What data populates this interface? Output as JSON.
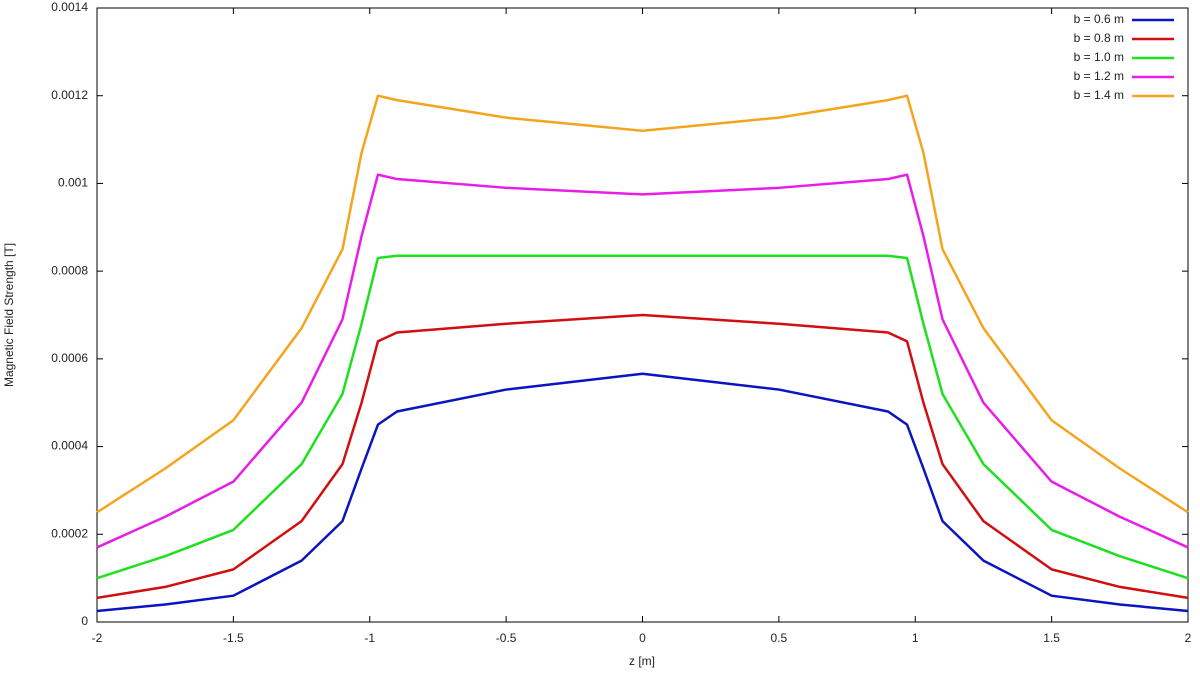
{
  "chart_data": {
    "type": "line",
    "xlabel": "z [m]",
    "ylabel": "Magnetic Field Strength [T]",
    "x": [
      -2,
      -1.75,
      -1.5,
      -1.25,
      -1.1,
      -1.03,
      -0.97,
      -0.9,
      -0.5,
      0,
      0.5,
      0.9,
      0.97,
      1.03,
      1.1,
      1.25,
      1.5,
      1.75,
      2
    ],
    "series": [
      {
        "name": "b = 0.6 m",
        "color": "#0a14c0",
        "values": [
          2.5e-05,
          4e-05,
          6e-05,
          0.00014,
          0.00023,
          0.00035,
          0.00045,
          0.00048,
          0.00053,
          0.000566,
          0.00053,
          0.00048,
          0.00045,
          0.00035,
          0.00023,
          0.00014,
          6e-05,
          4e-05,
          2.5e-05
        ]
      },
      {
        "name": "b = 0.8 m",
        "color": "#d01010",
        "values": [
          5.5e-05,
          8e-05,
          0.00012,
          0.00023,
          0.00036,
          0.0005,
          0.00064,
          0.00066,
          0.00068,
          0.0007,
          0.00068,
          0.00066,
          0.00064,
          0.0005,
          0.00036,
          0.00023,
          0.00012,
          8e-05,
          5.5e-05
        ]
      },
      {
        "name": "b = 1.0 m",
        "color": "#1ee01e",
        "values": [
          0.0001,
          0.00015,
          0.00021,
          0.00036,
          0.00052,
          0.00068,
          0.00083,
          0.000835,
          0.000835,
          0.000835,
          0.000835,
          0.000835,
          0.00083,
          0.00068,
          0.00052,
          0.00036,
          0.00021,
          0.00015,
          0.0001
        ]
      },
      {
        "name": "b = 1.2 m",
        "color": "#e81ee8",
        "values": [
          0.00017,
          0.00024,
          0.00032,
          0.0005,
          0.00069,
          0.00088,
          0.00102,
          0.00101,
          0.00099,
          0.000975,
          0.00099,
          0.00101,
          0.00102,
          0.00088,
          0.00069,
          0.0005,
          0.00032,
          0.00024,
          0.00017
        ]
      },
      {
        "name": "b = 1.4 m",
        "color": "#f5a41e",
        "values": [
          0.00025,
          0.00035,
          0.00046,
          0.00067,
          0.00085,
          0.00107,
          0.0012,
          0.00119,
          0.00115,
          0.00112,
          0.00115,
          0.00119,
          0.0012,
          0.00107,
          0.00085,
          0.00067,
          0.00046,
          0.00035,
          0.00025
        ]
      }
    ],
    "xlim": [
      -2,
      2
    ],
    "xticks": [
      -2,
      -1.5,
      -1,
      -0.5,
      0,
      0.5,
      1,
      1.5,
      2
    ],
    "ylim": [
      0,
      0.0014
    ],
    "yticks": [
      0,
      0.0002,
      0.0004,
      0.0006,
      0.0008,
      0.001,
      0.0012,
      0.0014
    ],
    "grid": false,
    "legend": "upper right"
  }
}
